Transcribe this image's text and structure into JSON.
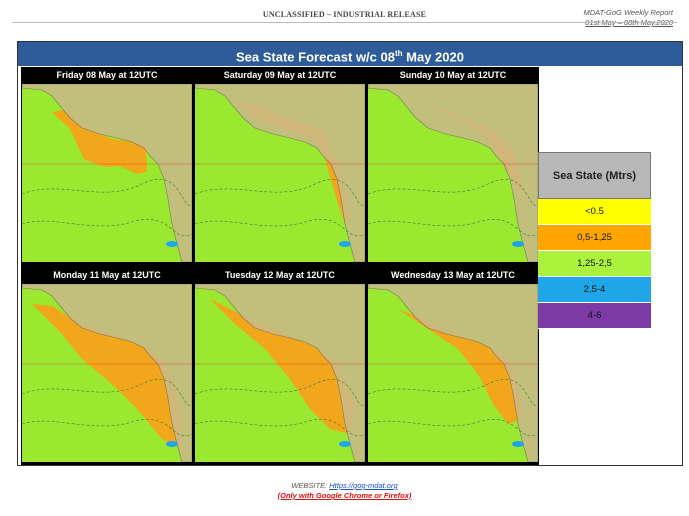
{
  "header": {
    "classification": "UNCLASSIFIED – INDUSTRIAL RELEASE",
    "report_title": "MDAT-GoG Weekly Report",
    "report_dates": "01st May – 08th May.2020"
  },
  "figure": {
    "title_main": "Sea State Forecast w/c 08",
    "title_sup": "th",
    "title_end": " May 2020",
    "panels": [
      {
        "label": "Friday 08 May at 12UTC"
      },
      {
        "label": "Saturday 09 May at 12UTC"
      },
      {
        "label": "Sunday 10 May at 12UTC"
      },
      {
        "label": "Monday 11 May at 12UTC"
      },
      {
        "label": "Tuesday 12 May at 12UTC"
      },
      {
        "label": "Wednesday 13 May at 12UTC"
      }
    ],
    "colors": {
      "sea_land_bg": "#9be830",
      "calm": "#f7a21b",
      "land": "#c9b98a"
    }
  },
  "legend": {
    "title": "Sea State (Mtrs)",
    "items": [
      {
        "label": "<0.5",
        "color": "#ffff00"
      },
      {
        "label": "0,5-1,25",
        "color": "#ffa500"
      },
      {
        "label": "1,25-2,5",
        "color": "#aaf23c"
      },
      {
        "label": "2,5-4",
        "color": "#1fa6e8"
      },
      {
        "label": "4-6",
        "color": "#7b3aa6"
      }
    ]
  },
  "footer": {
    "website_label": "WEBSITE: ",
    "website_url": "Https://gog-mdat.org",
    "browser_note": "(Only with Google Chrome or Firefox)"
  }
}
